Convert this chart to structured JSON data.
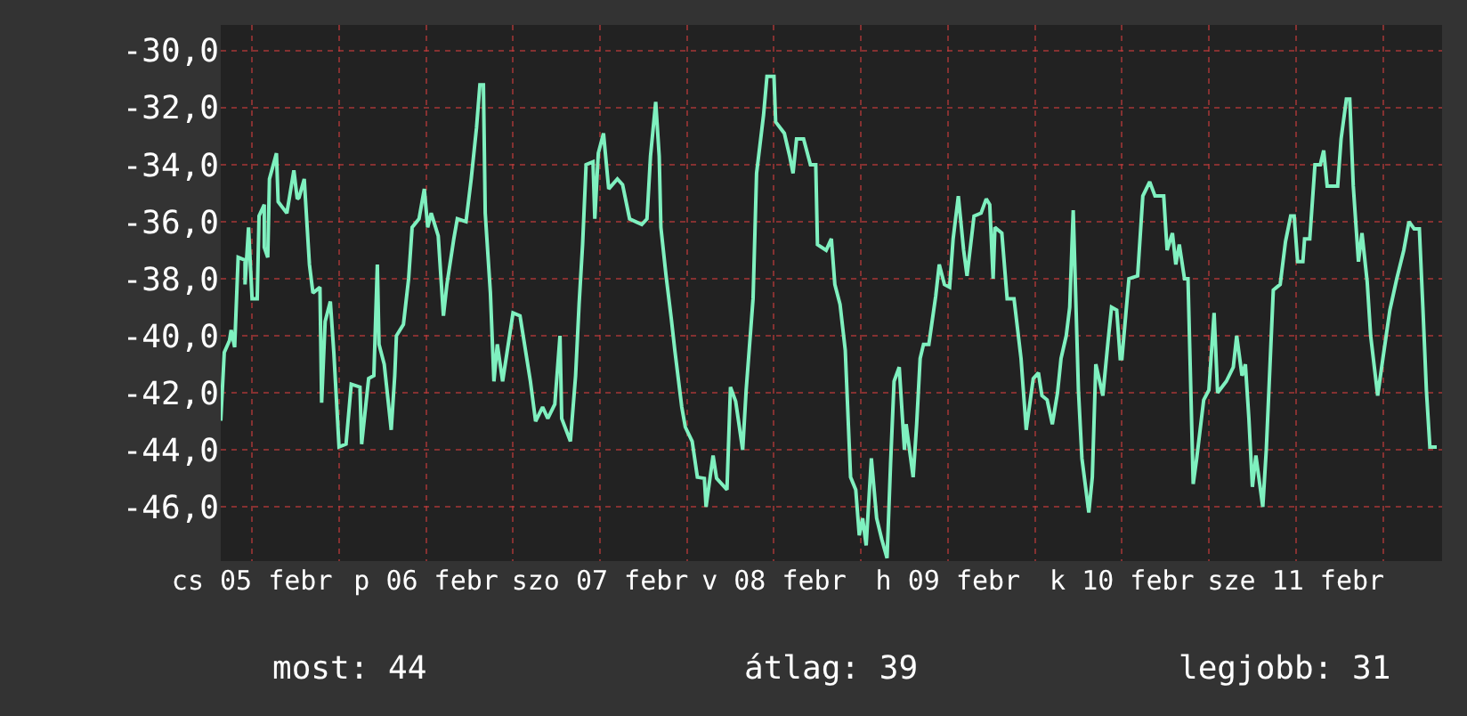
{
  "chart_data": {
    "type": "line",
    "x": [
      "--02-05T07:41",
      "--02-05T08:10",
      "--02-05T08:53",
      "--02-05T09:07",
      "--02-05T09:36",
      "--02-05T10:05",
      "--02-05T11:02",
      "--02-05T11:02",
      "--02-05T11:31",
      "--02-05T12:00",
      "--02-05T12:43",
      "--02-05T12:58",
      "--02-05T13:41",
      "--02-05T13:41",
      "--02-05T14:10",
      "--02-05T14:24",
      "--02-05T15:22",
      "--02-05T15:36",
      "--02-05T16:48",
      "--02-05T17:46",
      "--02-05T18:14",
      "--02-05T18:29",
      "--02-05T19:12",
      "--02-05T19:55",
      "--02-05T20:24",
      "--02-05T21:22",
      "--02-05T21:36",
      "--02-05T22:05",
      "--02-05T22:48",
      "--02-05T23:17",
      "--02-06T00:00",
      "--02-06T00:58",
      "--02-06T01:41",
      "--02-06T02:53",
      "--02-06T03:07",
      "--02-06T04:05",
      "--02-06T04:48",
      "--02-06T05:17",
      "--02-06T05:31",
      "--02-06T06:14",
      "--02-06T07:12",
      "--02-06T07:41",
      "--02-06T07:55",
      "--02-06T08:53",
      "--02-06T09:36",
      "--02-06T10:05",
      "--02-06T11:02",
      "--02-06T11:46",
      "--02-06T12:14",
      "--02-06T12:43",
      "--02-06T13:41",
      "--02-06T14:24",
      "--02-06T14:53",
      "--02-06T15:50",
      "--02-06T16:19",
      "--02-06T17:31",
      "--02-06T18:14",
      "--02-06T18:58",
      "--02-06T19:26",
      "--02-06T19:55",
      "--02-06T20:10",
      "--02-06T20:53",
      "--02-06T21:22",
      "--02-06T21:50",
      "--02-06T22:34",
      "--02-06T23:17",
      "--02-07T00:00",
      "--02-07T00:58",
      "--02-07T02:24",
      "--02-07T03:07",
      "--02-07T04:05",
      "--02-07T04:48",
      "--02-07T05:46",
      "--02-07T06:29",
      "--02-07T06:43",
      "--02-07T07:55",
      "--02-07T08:38",
      "--02-07T09:07",
      "--02-07T09:36",
      "--02-07T10:05",
      "--02-07T11:02",
      "--02-07T11:17",
      "--02-07T11:46",
      "--02-07T12:29",
      "--02-07T13:12",
      "--02-07T14:24",
      "--02-07T15:07",
      "--02-07T16:05",
      "--02-07T17:46",
      "--02-07T18:29",
      "--02-07T18:58",
      "--02-07T19:41",
      "--02-07T20:10",
      "--02-07T20:24",
      "--02-07T21:07",
      "--02-07T21:50",
      "--02-07T22:19",
      "--02-07T23:17",
      "--02-07T23:46",
      "--02-08T00:43",
      "--02-08T01:26",
      "--02-08T02:24",
      "--02-08T02:38",
      "--02-08T03:36",
      "--02-08T04:05",
      "--02-08T05:31",
      "--02-08T06:00",
      "--02-08T06:43",
      "--02-08T07:41",
      "--02-08T08:10",
      "--02-08T09:07",
      "--02-08T09:36",
      "--02-08T10:34",
      "--02-08T11:02",
      "--02-08T12:00",
      "--02-08T12:14",
      "--02-08T13:26",
      "--02-08T14:10",
      "--02-08T14:38",
      "--02-08T15:07",
      "--02-08T16:05",
      "--02-08T17:02",
      "--02-08T17:46",
      "--02-08T18:00",
      "--02-08T19:12",
      "--02-08T19:55",
      "--02-08T20:24",
      "--02-08T21:07",
      "--02-08T21:50",
      "--02-08T22:34",
      "--02-08T23:17",
      "--02-08T23:46",
      "--02-09T00:14",
      "--02-09T00:43",
      "--02-09T01:26",
      "--02-09T02:10",
      "--02-09T02:53",
      "--02-09T03:36",
      "--02-09T04:05",
      "--02-09T04:34",
      "--02-09T05:17",
      "--02-09T06:00",
      "--02-09T06:14",
      "--02-09T07:12",
      "--02-09T07:41",
      "--02-09T08:10",
      "--02-09T08:38",
      "--02-09T09:22",
      "--02-09T10:19",
      "--02-09T10:48",
      "--02-09T11:31",
      "--02-09T12:14",
      "--02-09T12:43",
      "--02-09T13:26",
      "--02-09T14:10",
      "--02-09T14:38",
      "--02-09T15:36",
      "--02-09T16:34",
      "--02-09T17:17",
      "--02-09T17:46",
      "--02-09T18:14",
      "--02-09T18:29",
      "--02-09T19:26",
      "--02-09T20:10",
      "--02-09T21:07",
      "--02-09T22:05",
      "--02-09T22:48",
      "--02-09T23:46",
      "--02-10T00:29",
      "--02-10T00:58",
      "--02-10T01:41",
      "--02-10T02:24",
      "--02-10T03:07",
      "--02-10T03:36",
      "--02-10T04:19",
      "--02-10T04:48",
      "--02-10T05:17",
      "--02-10T06:00",
      "--02-10T06:29",
      "--02-10T07:26",
      "--02-10T07:55",
      "--02-10T08:24",
      "--02-10T09:22",
      "--02-10T10:05",
      "--02-10T10:34",
      "--02-10T11:17",
      "--02-10T11:46",
      "--02-10T12:00",
      "--02-10T12:58",
      "--02-10T14:10",
      "--02-10T14:53",
      "--02-10T15:50",
      "--02-10T16:34",
      "--02-10T17:46",
      "--02-10T18:14",
      "--02-10T18:58",
      "--02-10T19:26",
      "--02-10T19:55",
      "--02-10T20:38",
      "--02-10T21:07",
      "--02-10T21:50",
      "--02-10T22:19",
      "--02-10T23:17",
      "--02-11T00:00",
      "--02-11T00:43",
      "--02-11T01:12",
      "--02-11T02:24",
      "--02-11T03:22",
      "--02-11T03:50",
      "--02-11T04:34",
      "--02-11T05:02",
      "--02-11T05:31",
      "--02-11T06:00",
      "--02-11T06:29",
      "--02-11T07:26",
      "--02-11T07:55",
      "--02-11T08:53",
      "--02-11T09:50",
      "--02-11T10:34",
      "--02-11T11:17",
      "--02-11T11:46",
      "--02-11T12:14",
      "--02-11T12:58",
      "--02-11T13:12",
      "--02-11T13:55",
      "--02-11T14:38",
      "--02-11T15:22",
      "--02-11T15:50",
      "--02-11T16:19",
      "--02-11T17:46",
      "--02-11T18:14",
      "--02-11T18:58",
      "--02-11T19:26",
      "--02-11T19:55",
      "--02-11T20:38",
      "--02-11T21:07",
      "--02-11T21:50",
      "--02-11T22:19",
      "--02-11T23:17",
      "--02-12T00:00",
      "--02-12T00:58",
      "--02-12T01:55",
      "--02-12T02:53",
      "--02-12T03:36",
      "--02-12T04:19",
      "--02-12T05:02",
      "--02-12T05:31",
      "--02-12T06:00",
      "--02-12T06:29",
      "--02-12T07:26"
    ],
    "series": [
      {
        "color": "#7ff0bf",
        "values": [
          -42.98,
          -40.58,
          -40.17,
          -39.8,
          -40.4,
          -37.25,
          -37.35,
          -38.2,
          -36.2,
          -38.7,
          -38.7,
          -35.8,
          -35.4,
          -36.9,
          -37.25,
          -34.5,
          -33.6,
          -35.3,
          -35.7,
          -34.2,
          -35.2,
          -35.15,
          -34.5,
          -37.5,
          -38.5,
          -38.3,
          -42.35,
          -39.5,
          -38.8,
          -40.6,
          -43.9,
          -43.8,
          -41.7,
          -41.8,
          -43.8,
          -41.5,
          -41.4,
          -37.5,
          -40.3,
          -41.0,
          -43.3,
          -41.4,
          -40.0,
          -39.6,
          -38.0,
          -36.2,
          -35.9,
          -34.85,
          -36.2,
          -35.7,
          -36.5,
          -39.3,
          -38.2,
          -36.6,
          -35.9,
          -36.0,
          -34.5,
          -32.7,
          -31.2,
          -31.2,
          -35.7,
          -38.5,
          -41.6,
          -40.3,
          -41.6,
          -40.4,
          -39.2,
          -39.3,
          -41.6,
          -43.0,
          -42.5,
          -42.9,
          -42.4,
          -40.0,
          -42.9,
          -43.7,
          -41.4,
          -38.9,
          -36.8,
          -34.0,
          -33.9,
          -35.9,
          -33.6,
          -32.9,
          -34.85,
          -34.5,
          -34.7,
          -35.9,
          -36.1,
          -35.9,
          -33.7,
          -31.8,
          -33.7,
          -36.2,
          -37.9,
          -39.4,
          -40.5,
          -42.5,
          -43.2,
          -43.7,
          -44.96,
          -45.0,
          -46.0,
          -44.2,
          -45.0,
          -45.4,
          -41.8,
          -42.3,
          -44.0,
          -41.9,
          -38.7,
          -34.3,
          -32.25,
          -30.9,
          -30.9,
          -32.5,
          -32.9,
          -33.7,
          -34.3,
          -33.1,
          -33.1,
          -34.0,
          -34.0,
          -36.8,
          -37.0,
          -36.6,
          -38.2,
          -38.9,
          -40.5,
          -44.96,
          -45.4,
          -47.0,
          -46.4,
          -47.35,
          -44.3,
          -46.4,
          -47.15,
          -47.8,
          -44.5,
          -41.6,
          -41.1,
          -44.0,
          -43.1,
          -44.96,
          -43.1,
          -40.8,
          -40.3,
          -40.3,
          -38.6,
          -37.5,
          -38.2,
          -38.3,
          -36.6,
          -35.1,
          -37.0,
          -37.9,
          -35.8,
          -35.7,
          -35.2,
          -35.4,
          -38.0,
          -36.2,
          -36.4,
          -38.7,
          -38.7,
          -40.8,
          -43.3,
          -41.5,
          -41.3,
          -42.1,
          -42.25,
          -43.1,
          -42.0,
          -40.8,
          -40.0,
          -39.0,
          -35.6,
          -41.9,
          -44.3,
          -46.2,
          -44.96,
          -41.0,
          -42.1,
          -40.2,
          -39.0,
          -39.1,
          -40.8,
          -40.8,
          -38.0,
          -37.9,
          -35.1,
          -34.6,
          -35.1,
          -35.1,
          -37.0,
          -36.4,
          -37.5,
          -36.8,
          -38.0,
          -38.0,
          -45.2,
          -44.3,
          -42.25,
          -41.9,
          -39.2,
          -42.0,
          -41.6,
          -41.1,
          -40.0,
          -41.4,
          -41.0,
          -42.9,
          -45.3,
          -44.2,
          -46.0,
          -44.0,
          -38.4,
          -38.2,
          -36.7,
          -35.8,
          -35.8,
          -37.4,
          -37.4,
          -36.6,
          -36.6,
          -34.0,
          -34.0,
          -33.5,
          -34.75,
          -34.75,
          -33.1,
          -31.7,
          -31.7,
          -34.75,
          -37.4,
          -36.4,
          -38.1,
          -40.0,
          -42.1,
          -40.8,
          -39.1,
          -38.0,
          -37.0,
          -36.0,
          -36.25,
          -36.25,
          -39.0,
          -41.9,
          -43.9,
          -43.9
        ]
      }
    ],
    "xlim": [
      "--02-05T07:41",
      "--02-12T08:10"
    ],
    "xticks": [
      {
        "value": "--02-05T12:00",
        "label": "cs 05 febr"
      },
      {
        "value": "--02-06T00:00",
        "label": null
      },
      {
        "value": "--02-06T12:00",
        "label": "p 06 febr"
      },
      {
        "value": "--02-07T00:00",
        "label": null
      },
      {
        "value": "--02-07T12:00",
        "label": "szo 07 febr"
      },
      {
        "value": "--02-08T00:00",
        "label": null
      },
      {
        "value": "--02-08T12:00",
        "label": "v 08 febr"
      },
      {
        "value": "--02-09T00:00",
        "label": null
      },
      {
        "value": "--02-09T12:00",
        "label": "h 09 febr"
      },
      {
        "value": "--02-10T00:00",
        "label": null
      },
      {
        "value": "--02-10T12:00",
        "label": "k 10 febr"
      },
      {
        "value": "--02-11T00:00",
        "label": null
      },
      {
        "value": "--02-11T12:00",
        "label": "sze 11 febr"
      },
      {
        "value": "--02-12T00:00",
        "label": null
      }
    ],
    "ylim": [
      -47.9,
      -29.1
    ],
    "yticks": [
      {
        "value": -30,
        "label": "-30,0"
      },
      {
        "value": -32,
        "label": "-32,0"
      },
      {
        "value": -34,
        "label": "-34,0"
      },
      {
        "value": -36,
        "label": "-36,0"
      },
      {
        "value": -38,
        "label": "-38,0"
      },
      {
        "value": -40,
        "label": "-40,0"
      },
      {
        "value": -42,
        "label": "-42,0"
      },
      {
        "value": -44,
        "label": "-44,0"
      },
      {
        "value": -46,
        "label": "-46,0"
      }
    ],
    "grid": true,
    "annotations": [
      "most: 44",
      "átlag: 39",
      "legjobb: 31"
    ]
  }
}
